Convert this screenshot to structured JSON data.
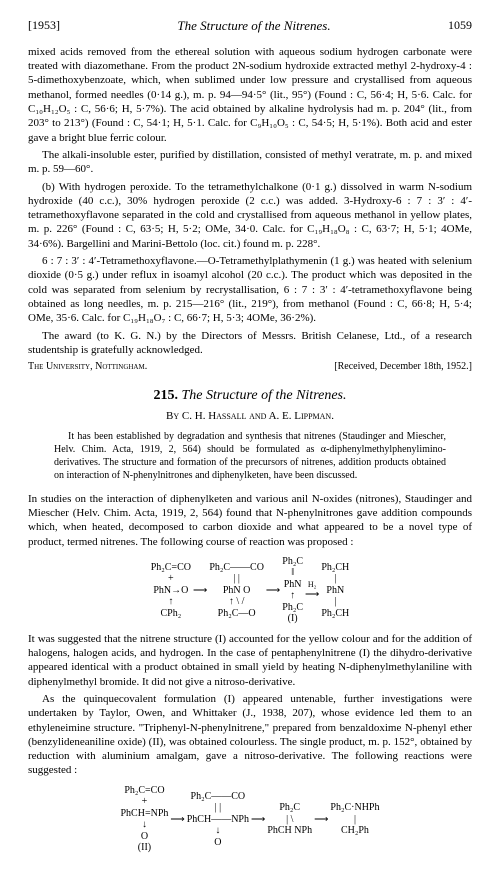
{
  "header": {
    "year": "[1953]",
    "running_title": "The Structure of the Nitrenes.",
    "page": "1059"
  },
  "body": {
    "p1": "mixed acids removed from the ethereal solution with aqueous sodium hydrogen carbonate were treated with diazomethane. From the product 2N-sodium hydroxide extracted methyl 2-hydroxy-4 : 5-dimethoxybenzoate, which, when sublimed under low pressure and crystallised from aqueous methanol, formed needles (0·14 g.), m. p. 94—94·5° (lit., 95°) (Found : C, 56·4; H, 5·6. Calc. for C₁₀H₁₂O₅ : C, 56·6; H, 5·7%). The acid obtained by alkaline hydrolysis had m. p. 204° (lit., from 203° to 213°) (Found : C, 54·1; H, 5·1. Calc. for C₉H₁₀O₅ : C, 54·5; H, 5·1%). Both acid and ester gave a bright blue ferric colour.",
    "p2": "The alkali-insoluble ester, purified by distillation, consisted of methyl veratrate, m. p. and mixed m. p. 59—60°.",
    "p3": "(b) With hydrogen peroxide. To the tetramethylchalkone (0·1 g.) dissolved in warm N-sodium hydroxide (40 c.c.), 30% hydrogen peroxide (2 c.c.) was added. 3-Hydroxy-6 : 7 : 3′ : 4′-tetramethoxyflavone separated in the cold and crystallised from aqueous methanol in yellow plates, m. p. 226° (Found : C, 63·5; H, 5·2; OMe, 34·0. Calc. for C₁₉H₁₈O₈ : C, 63·7; H, 5·1; 4OMe, 34·6%). Bargellini and Marini-Bettolo (loc. cit.) found m. p. 228°.",
    "p4": "6 : 7 : 3′ : 4′-Tetramethoxyflavone.—O-Tetramethylplathymenin (1 g.) was heated with selenium dioxide (0·5 g.) under reflux in isoamyl alcohol (20 c.c.). The product which was deposited in the cold was separated from selenium by recrystallisation, 6 : 7 : 3′ : 4′-tetramethoxyflavone being obtained as long needles, m. p. 215—216° (lit., 219°), from methanol (Found : C, 66·8; H, 5·4; OMe, 35·6. Calc. for C₁₉H₁₈O₇ : C, 66·7; H, 5·3; 4OMe, 36·2%).",
    "p5": "The award (to K. G. N.) by the Directors of Messrs. British Celanese, Ltd., of a research studentship is gratefully acknowledged.",
    "affil": "The University, Nottingham.",
    "received": "[Received, December 18th, 1952.]"
  },
  "article": {
    "number": "215.",
    "title": "The Structure of the Nitrenes.",
    "authors": "By C. H. Hassall and A. E. Lippman.",
    "abstract": "It has been established by degradation and synthesis that nitrenes (Staudinger and Miescher, Helv. Chim. Acta, 1919, 2, 564) should be formulated as α-diphenylmethylphenylimino-derivatives. The structure and formation of the precursors of nitrenes, addition products obtained on interaction of N-phenylnitrones and diphenylketen, have been discussed.",
    "p1": "In studies on the interaction of diphenylketen and various anil N-oxides (nitrones), Staudinger and Miescher (Helv. Chim. Acta, 1919, 2, 564) found that N-phenylnitrones gave addition compounds which, when heated, decomposed to carbon dioxide and what appeared to be a novel type of product, termed nitrenes. The following course of reaction was proposed :",
    "p2": "It was suggested that the nitrene structure (I) accounted for the yellow colour and for the addition of halogens, halogen acids, and hydrogen. In the case of pentaphenylnitrene (I) the dihydro-derivative appeared identical with a product obtained in small yield by heating N-diphenylmethylaniline with diphenylmethyl bromide. It did not give a nitroso-derivative.",
    "p3": "As the quinquecovalent formulation (I) appeared untenable, further investigations were undertaken by Taylor, Owen, and Whittaker (J., 1938, 207), whose evidence led them to an ethyleneimine structure. \"Triphenyl-N-phenylnitrene,\" prepared from benzaldoxime N-phenyl ether (benzylideneaniline oxide) (II), was obtained colourless. The single product, m. p. 152°, obtained by reduction with aluminium amalgam, gave a nitroso-derivative. The following reactions were suggested :"
  },
  "scheme1": {
    "c1a": "Ph₂C=CO",
    "c1b": "+",
    "c1c": "PhN→O",
    "c1d": "↑",
    "c1e": "CPh₂",
    "c2a": "Ph₂C——CO",
    "c2b": "|         |",
    "c2c": "PhN      O",
    "c2d": "↑  \\    /",
    "c2e": "Ph₂C—O",
    "c3a": "Ph₂C",
    "c3b": "‖",
    "c3c": "PhN",
    "c3d": "↑",
    "c3e": "Ph₂C",
    "c3f": "(I)",
    "c4a": "Ph₂CH",
    "c4b": "|",
    "c4c": "PhN",
    "c4d": "|",
    "c4e": "Ph₂CH",
    "arrow": "⟶",
    "h2": "H₂"
  },
  "scheme2": {
    "c1a": "Ph₂C=CO",
    "c1b": "+",
    "c1c": "PhCH=NPh",
    "c1d": "↓",
    "c1e": "O",
    "c1f": "(II)",
    "c2a": "Ph₂C——CO",
    "c2b": "|         |",
    "c2c": "PhCH——NPh",
    "c2d": "↓",
    "c2e": "O",
    "c3a": "Ph₂C",
    "c3b": "|    \\",
    "c3c": "PhCH",
    "c3d": "NPh",
    "c4a": "Ph₂C·NHPh",
    "c4b": "|",
    "c4c": "CH₂Ph",
    "arrow": "⟶"
  }
}
